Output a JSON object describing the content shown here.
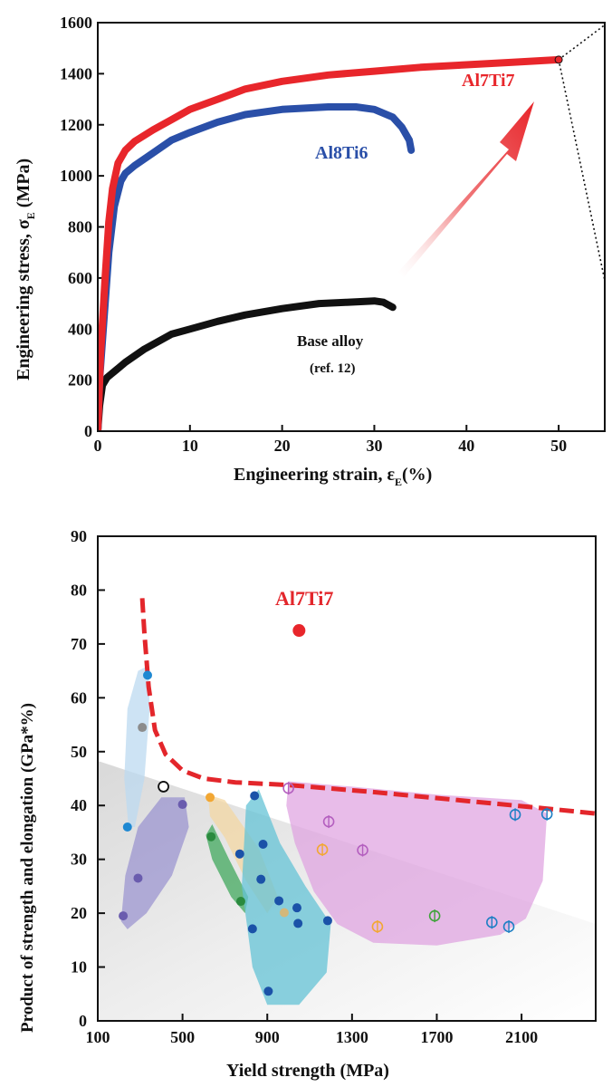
{
  "chart_data": [
    {
      "type": "line",
      "xlabel": "Engineering strain, ε",
      "xlabel_sub": "E",
      "xlabel_suffix": "(%)",
      "ylabel": "Engineering stress, σ",
      "ylabel_sub": "E",
      "ylabel_suffix": " (MPa)",
      "xlim": [
        0,
        55
      ],
      "ylim": [
        0,
        1600
      ],
      "xticks": [
        0,
        10,
        20,
        30,
        40,
        50
      ],
      "yticks": [
        0,
        200,
        400,
        600,
        800,
        1000,
        1200,
        1400,
        1600
      ],
      "series": [
        {
          "name": "Al7Ti7",
          "color": "#e8262b",
          "points": [
            [
              0,
              0
            ],
            [
              0.3,
              300
            ],
            [
              0.8,
              600
            ],
            [
              1.2,
              820
            ],
            [
              1.6,
              950
            ],
            [
              2.2,
              1050
            ],
            [
              3,
              1100
            ],
            [
              4,
              1135
            ],
            [
              6,
              1180
            ],
            [
              8,
              1220
            ],
            [
              10,
              1260
            ],
            [
              13,
              1300
            ],
            [
              16,
              1340
            ],
            [
              20,
              1370
            ],
            [
              25,
              1395
            ],
            [
              30,
              1410
            ],
            [
              35,
              1425
            ],
            [
              40,
              1435
            ],
            [
              45,
              1445
            ],
            [
              50,
              1455
            ]
          ]
        },
        {
          "name": "Al8Ti6",
          "color": "#2a4fa8",
          "points": [
            [
              0,
              0
            ],
            [
              0.2,
              200
            ],
            [
              0.7,
              450
            ],
            [
              1.2,
              700
            ],
            [
              1.8,
              880
            ],
            [
              2.5,
              980
            ],
            [
              3,
              1010
            ],
            [
              4,
              1040
            ],
            [
              6,
              1090
            ],
            [
              8,
              1140
            ],
            [
              10,
              1170
            ],
            [
              13,
              1210
            ],
            [
              16,
              1240
            ],
            [
              20,
              1260
            ],
            [
              25,
              1270
            ],
            [
              28,
              1270
            ],
            [
              30,
              1260
            ],
            [
              32,
              1230
            ],
            [
              33,
              1190
            ],
            [
              33.8,
              1140
            ],
            [
              34,
              1100
            ]
          ]
        },
        {
          "name": "Base alloy",
          "label_sub": "(ref. 12)",
          "color": "#111111",
          "points": [
            [
              0,
              0
            ],
            [
              0.2,
              100
            ],
            [
              0.5,
              180
            ],
            [
              1,
              210
            ],
            [
              2,
              240
            ],
            [
              3,
              270
            ],
            [
              5,
              320
            ],
            [
              8,
              380
            ],
            [
              10,
              400
            ],
            [
              13,
              430
            ],
            [
              16,
              455
            ],
            [
              20,
              480
            ],
            [
              24,
              500
            ],
            [
              27,
              505
            ],
            [
              30,
              510
            ],
            [
              31,
              505
            ],
            [
              32,
              485
            ]
          ]
        }
      ],
      "annotations": {
        "dotted_line_points": [
          [
            50,
            1455
          ],
          [
            55,
            1600
          ],
          [
            50,
            1455
          ],
          [
            55,
            420
          ]
        ]
      }
    },
    {
      "type": "scatter",
      "xlabel": "Yield strength (MPa)",
      "ylabel": "Product of strength and elongation (GPa*%)",
      "xlim": [
        100,
        2450
      ],
      "ylim": [
        0,
        90
      ],
      "xticks": [
        100,
        500,
        900,
        1300,
        1700,
        2100
      ],
      "yticks": [
        0,
        10,
        20,
        30,
        40,
        50,
        60,
        70,
        80,
        90
      ],
      "highlight": {
        "name": "Al7Ti7",
        "x": 1050,
        "y": 72.5,
        "color": "#e8262b"
      },
      "dashed_boundary": [
        [
          310,
          78.5
        ],
        [
          320,
          72
        ],
        [
          340,
          62
        ],
        [
          370,
          54
        ],
        [
          420,
          49.5
        ],
        [
          500,
          46.5
        ],
        [
          600,
          45
        ],
        [
          750,
          44.3
        ],
        [
          1000,
          43.8
        ],
        [
          1400,
          42.5
        ],
        [
          1800,
          41
        ],
        [
          2200,
          39.5
        ],
        [
          2450,
          38.5
        ]
      ],
      "regions": [
        {
          "color": "#bcd9f0",
          "opacity": 0.75,
          "polygon": [
            [
              245,
              36
            ],
            [
              225,
              45
            ],
            [
              240,
              58
            ],
            [
              290,
              65
            ],
            [
              340,
              66
            ],
            [
              345,
              58
            ],
            [
              320,
              45
            ],
            [
              275,
              36
            ]
          ]
        },
        {
          "color": "#8a82cc",
          "opacity": 0.6,
          "polygon": [
            [
              210,
              18.5
            ],
            [
              230,
              27
            ],
            [
              290,
              36
            ],
            [
              400,
              41.5
            ],
            [
              510,
              41.5
            ],
            [
              530,
              36
            ],
            [
              450,
              27
            ],
            [
              330,
              20
            ],
            [
              240,
              17
            ]
          ]
        },
        {
          "color": "#f3d7a3",
          "opacity": 0.75,
          "polygon": [
            [
              620,
              42
            ],
            [
              700,
              41
            ],
            [
              860,
              32
            ],
            [
              950,
              23
            ],
            [
              900,
              20
            ],
            [
              800,
              26
            ],
            [
              700,
              34
            ],
            [
              630,
              38
            ]
          ]
        },
        {
          "color": "#42a85e",
          "opacity": 0.75,
          "polygon": [
            [
              610,
              34.5
            ],
            [
              640,
              36.5
            ],
            [
              720,
              30
            ],
            [
              810,
              23
            ],
            [
              795,
              20
            ],
            [
              730,
              23
            ],
            [
              640,
              30
            ]
          ]
        },
        {
          "color": "#64c3d6",
          "opacity": 0.75,
          "polygon": [
            [
              800,
              40
            ],
            [
              860,
              43
            ],
            [
              960,
              33
            ],
            [
              1080,
              25
            ],
            [
              1200,
              18
            ],
            [
              1180,
              9
            ],
            [
              1050,
              3
            ],
            [
              900,
              3
            ],
            [
              830,
              10
            ],
            [
              780,
              25
            ]
          ]
        },
        {
          "color": "#de9fdf",
          "opacity": 0.7,
          "polygon": [
            [
              1000,
              44.5
            ],
            [
              1300,
              43.5
            ],
            [
              1700,
              42
            ],
            [
              2100,
              41
            ],
            [
              2220,
              38.5
            ],
            [
              2200,
              26
            ],
            [
              2120,
              19
            ],
            [
              2000,
              16
            ],
            [
              1700,
              14
            ],
            [
              1400,
              14.5
            ],
            [
              1230,
              18
            ],
            [
              1120,
              24
            ],
            [
              1030,
              33
            ],
            [
              990,
              40
            ]
          ]
        }
      ],
      "points": [
        {
          "x": 335,
          "y": 64.2,
          "color": "#1e88d2",
          "style": "filled"
        },
        {
          "x": 310,
          "y": 54.5,
          "color": "#8c8c8c",
          "style": "filled"
        },
        {
          "x": 240,
          "y": 36,
          "color": "#1e88d2",
          "style": "filled"
        },
        {
          "x": 410,
          "y": 43.5,
          "color": "#111111",
          "style": "open"
        },
        {
          "x": 500,
          "y": 40.2,
          "color": "#6a5cae",
          "style": "filled"
        },
        {
          "x": 290,
          "y": 26.5,
          "color": "#6a5cae",
          "style": "filled"
        },
        {
          "x": 220,
          "y": 19.5,
          "color": "#6a5cae",
          "style": "filled"
        },
        {
          "x": 630,
          "y": 41.5,
          "color": "#f2a733",
          "style": "filled"
        },
        {
          "x": 635,
          "y": 34.2,
          "color": "#2a8a3e",
          "style": "filled"
        },
        {
          "x": 775,
          "y": 22.2,
          "color": "#2a8a3e",
          "style": "filled"
        },
        {
          "x": 840,
          "y": 41.8,
          "color": "#1b52a8",
          "style": "filled"
        },
        {
          "x": 880,
          "y": 32.8,
          "color": "#1b52a8",
          "style": "filled"
        },
        {
          "x": 770,
          "y": 31,
          "color": "#1b52a8",
          "style": "filled"
        },
        {
          "x": 870,
          "y": 26.3,
          "color": "#1b52a8",
          "style": "filled"
        },
        {
          "x": 955,
          "y": 22.3,
          "color": "#1b52a8",
          "style": "filled"
        },
        {
          "x": 1040,
          "y": 21,
          "color": "#1b52a8",
          "style": "filled"
        },
        {
          "x": 1045,
          "y": 18.1,
          "color": "#1b52a8",
          "style": "filled"
        },
        {
          "x": 1185,
          "y": 18.6,
          "color": "#1b52a8",
          "style": "filled"
        },
        {
          "x": 830,
          "y": 17.1,
          "color": "#1b52a8",
          "style": "filled"
        },
        {
          "x": 905,
          "y": 5.5,
          "color": "#1b52a8",
          "style": "filled"
        },
        {
          "x": 980,
          "y": 20.1,
          "color": "#d4b87a",
          "style": "filled"
        },
        {
          "x": 1000,
          "y": 43.2,
          "color": "#b45fbf",
          "style": "phi"
        },
        {
          "x": 1190,
          "y": 37,
          "color": "#b45fbf",
          "style": "phi"
        },
        {
          "x": 1350,
          "y": 31.7,
          "color": "#b45fbf",
          "style": "phi"
        },
        {
          "x": 1160,
          "y": 31.8,
          "color": "#f2a733",
          "style": "phi"
        },
        {
          "x": 1420,
          "y": 17.5,
          "color": "#f2a733",
          "style": "phi"
        },
        {
          "x": 1690,
          "y": 19.5,
          "color": "#3fa33a",
          "style": "phi"
        },
        {
          "x": 1960,
          "y": 18.3,
          "color": "#1e7fc4",
          "style": "phi"
        },
        {
          "x": 2040,
          "y": 17.5,
          "color": "#1e7fc4",
          "style": "phi"
        },
        {
          "x": 2070,
          "y": 38.3,
          "color": "#1e7fc4",
          "style": "phi"
        },
        {
          "x": 2220,
          "y": 38.4,
          "color": "#1e7fc4",
          "style": "phi"
        }
      ]
    }
  ]
}
